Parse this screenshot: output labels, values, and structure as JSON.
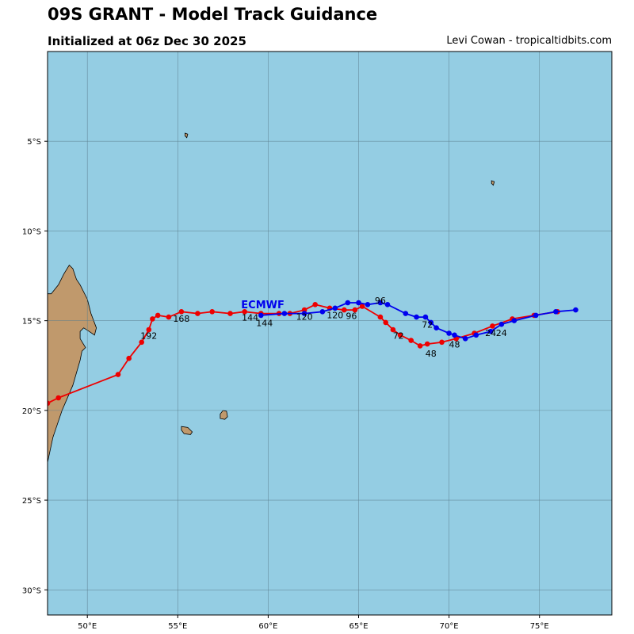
{
  "title": "09S GRANT - Model Track Guidance",
  "subtitle": "Initialized at 06z Dec 30 2025",
  "credit": "Levi Cowan - tropicaltidbits.com",
  "colors": {
    "ocean": "#94cde3",
    "land": "#c0996c",
    "grid": "#5a7d8c",
    "red": "#ee0000",
    "blue": "#0000ee",
    "model_label": "#0000ee"
  },
  "map": {
    "lon_range": [
      47.8,
      79.0
    ],
    "lat_range": [
      -31.4,
      0.0
    ],
    "lon_ticks": [
      50,
      55,
      60,
      65,
      70,
      75
    ],
    "lon_tick_labels": [
      "50°E",
      "55°E",
      "60°E",
      "65°E",
      "70°E",
      "75°E"
    ],
    "lat_ticks": [
      -5,
      -10,
      -15,
      -20,
      -25,
      -30
    ],
    "lat_tick_labels": [
      "5°S",
      "10°S",
      "15°S",
      "20°S",
      "25°S",
      "30°S"
    ]
  },
  "model_label": {
    "text": "ECMWF",
    "lon": 59.7,
    "lat": -14.3
  },
  "tracks": [
    {
      "name": "red-track",
      "color": "#ee0000",
      "points": [
        [
          76.0,
          -14.5
        ],
        [
          74.7,
          -14.7
        ],
        [
          73.5,
          -14.9
        ],
        [
          72.4,
          -15.3
        ],
        [
          71.4,
          -15.7
        ],
        [
          70.4,
          -16.0
        ],
        [
          69.6,
          -16.2
        ],
        [
          68.8,
          -16.3
        ],
        [
          68.4,
          -16.4
        ],
        [
          67.9,
          -16.1
        ],
        [
          67.3,
          -15.8
        ],
        [
          66.9,
          -15.5
        ],
        [
          66.5,
          -15.1
        ],
        [
          66.2,
          -14.8
        ],
        [
          65.2,
          -14.2
        ],
        [
          64.8,
          -14.4
        ],
        [
          64.2,
          -14.4
        ],
        [
          63.4,
          -14.3
        ],
        [
          62.6,
          -14.1
        ],
        [
          62.0,
          -14.4
        ],
        [
          61.2,
          -14.6
        ],
        [
          60.6,
          -14.6
        ],
        [
          59.6,
          -14.6
        ],
        [
          58.7,
          -14.5
        ],
        [
          57.9,
          -14.6
        ],
        [
          56.9,
          -14.5
        ],
        [
          56.1,
          -14.6
        ],
        [
          55.2,
          -14.5
        ],
        [
          54.5,
          -14.8
        ],
        [
          53.9,
          -14.7
        ],
        [
          53.6,
          -14.9
        ],
        [
          53.4,
          -15.5
        ],
        [
          53.0,
          -16.2
        ],
        [
          52.3,
          -17.1
        ],
        [
          51.7,
          -18.0
        ],
        [
          48.4,
          -19.3
        ],
        [
          47.8,
          -19.6
        ]
      ]
    },
    {
      "name": "blue-track",
      "color": "#0000ee",
      "points": [
        [
          77.0,
          -14.4
        ],
        [
          75.9,
          -14.5
        ],
        [
          74.8,
          -14.7
        ],
        [
          73.6,
          -15.0
        ],
        [
          72.9,
          -15.2
        ],
        [
          72.3,
          -15.6
        ],
        [
          71.5,
          -15.8
        ],
        [
          70.9,
          -16.0
        ],
        [
          70.3,
          -15.8
        ],
        [
          70.0,
          -15.7
        ],
        [
          69.3,
          -15.4
        ],
        [
          69.0,
          -15.1
        ],
        [
          68.7,
          -14.8
        ],
        [
          68.2,
          -14.8
        ],
        [
          67.6,
          -14.6
        ],
        [
          66.6,
          -14.1
        ],
        [
          66.2,
          -14.0
        ],
        [
          65.5,
          -14.1
        ],
        [
          65.0,
          -14.0
        ],
        [
          64.4,
          -14.0
        ],
        [
          63.7,
          -14.3
        ],
        [
          63.0,
          -14.5
        ],
        [
          62.0,
          -14.6
        ],
        [
          60.9,
          -14.6
        ],
        [
          59.6,
          -14.7
        ]
      ]
    }
  ],
  "hour_labels": [
    {
      "text": "24",
      "lon": 72.3,
      "lat": -15.85
    },
    {
      "text": "24",
      "lon": 72.9,
      "lat": -15.85
    },
    {
      "text": "48",
      "lon": 70.3,
      "lat": -16.5
    },
    {
      "text": "48",
      "lon": 69.0,
      "lat": -17.0
    },
    {
      "text": "72",
      "lon": 68.8,
      "lat": -15.4
    },
    {
      "text": "72",
      "lon": 67.2,
      "lat": -16.0
    },
    {
      "text": "96",
      "lon": 66.2,
      "lat": -14.05
    },
    {
      "text": "96",
      "lon": 64.6,
      "lat": -14.9
    },
    {
      "text": "120",
      "lon": 63.7,
      "lat": -14.85
    },
    {
      "text": "120",
      "lon": 62.0,
      "lat": -14.95
    },
    {
      "text": "144",
      "lon": 59.0,
      "lat": -15.0
    },
    {
      "text": "144",
      "lon": 59.8,
      "lat": -15.3
    },
    {
      "text": "168",
      "lon": 55.2,
      "lat": -15.05
    },
    {
      "text": "192",
      "lon": 53.4,
      "lat": -16.0
    }
  ],
  "land": [
    {
      "name": "madagascar",
      "points": [
        [
          47.8,
          -22.9
        ],
        [
          48.1,
          -21.5
        ],
        [
          48.6,
          -20.0
        ],
        [
          49.2,
          -18.6
        ],
        [
          49.6,
          -17.2
        ],
        [
          49.7,
          -16.7
        ],
        [
          49.9,
          -16.5
        ],
        [
          49.6,
          -16.0
        ],
        [
          49.6,
          -15.6
        ],
        [
          49.8,
          -15.4
        ],
        [
          50.1,
          -15.6
        ],
        [
          50.4,
          -15.8
        ],
        [
          50.5,
          -15.4
        ],
        [
          50.2,
          -14.6
        ],
        [
          50.0,
          -13.8
        ],
        [
          49.6,
          -13.0
        ],
        [
          49.4,
          -12.7
        ],
        [
          49.2,
          -12.1
        ],
        [
          49.0,
          -11.9
        ],
        [
          48.7,
          -12.4
        ],
        [
          48.4,
          -13.0
        ],
        [
          48.0,
          -13.5
        ],
        [
          47.8,
          -13.5
        ]
      ]
    },
    {
      "name": "reunion",
      "points": [
        [
          55.2,
          -20.9
        ],
        [
          55.55,
          -20.95
        ],
        [
          55.8,
          -21.2
        ],
        [
          55.7,
          -21.35
        ],
        [
          55.35,
          -21.3
        ],
        [
          55.2,
          -21.1
        ]
      ]
    },
    {
      "name": "mauritius",
      "points": [
        [
          57.5,
          -20.0
        ],
        [
          57.7,
          -20.05
        ],
        [
          57.75,
          -20.35
        ],
        [
          57.6,
          -20.5
        ],
        [
          57.35,
          -20.45
        ],
        [
          57.35,
          -20.2
        ]
      ]
    },
    {
      "name": "small-island-a",
      "points": [
        [
          55.4,
          -4.55
        ],
        [
          55.55,
          -4.6
        ],
        [
          55.5,
          -4.8
        ],
        [
          55.4,
          -4.7
        ]
      ]
    },
    {
      "name": "small-island-b",
      "points": [
        [
          72.35,
          -7.2
        ],
        [
          72.5,
          -7.25
        ],
        [
          72.45,
          -7.45
        ],
        [
          72.35,
          -7.35
        ]
      ]
    }
  ]
}
